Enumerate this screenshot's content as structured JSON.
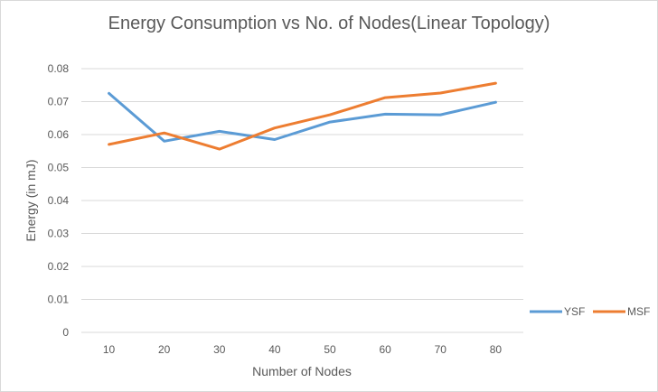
{
  "chart_data": {
    "type": "line",
    "title": "Energy Consumption vs No. of Nodes(Linear Topology)",
    "xlabel": "Number of Nodes",
    "ylabel": "Energy (in mJ)",
    "categories": [
      "10",
      "20",
      "30",
      "40",
      "50",
      "60",
      "70",
      "80"
    ],
    "ylim": [
      0,
      0.08
    ],
    "yticks": [
      "0",
      "0.01",
      "0.02",
      "0.03",
      "0.04",
      "0.05",
      "0.06",
      "0.07",
      "0.08"
    ],
    "grid": true,
    "legend_position": "right",
    "series": [
      {
        "name": "YSF",
        "color": "#5b9bd5",
        "values": [
          0.0725,
          0.058,
          0.061,
          0.0585,
          0.0638,
          0.0662,
          0.066,
          0.0698
        ]
      },
      {
        "name": "MSF",
        "color": "#ed7d31",
        "values": [
          0.057,
          0.0605,
          0.0556,
          0.062,
          0.066,
          0.0712,
          0.0726,
          0.0756
        ]
      }
    ]
  }
}
